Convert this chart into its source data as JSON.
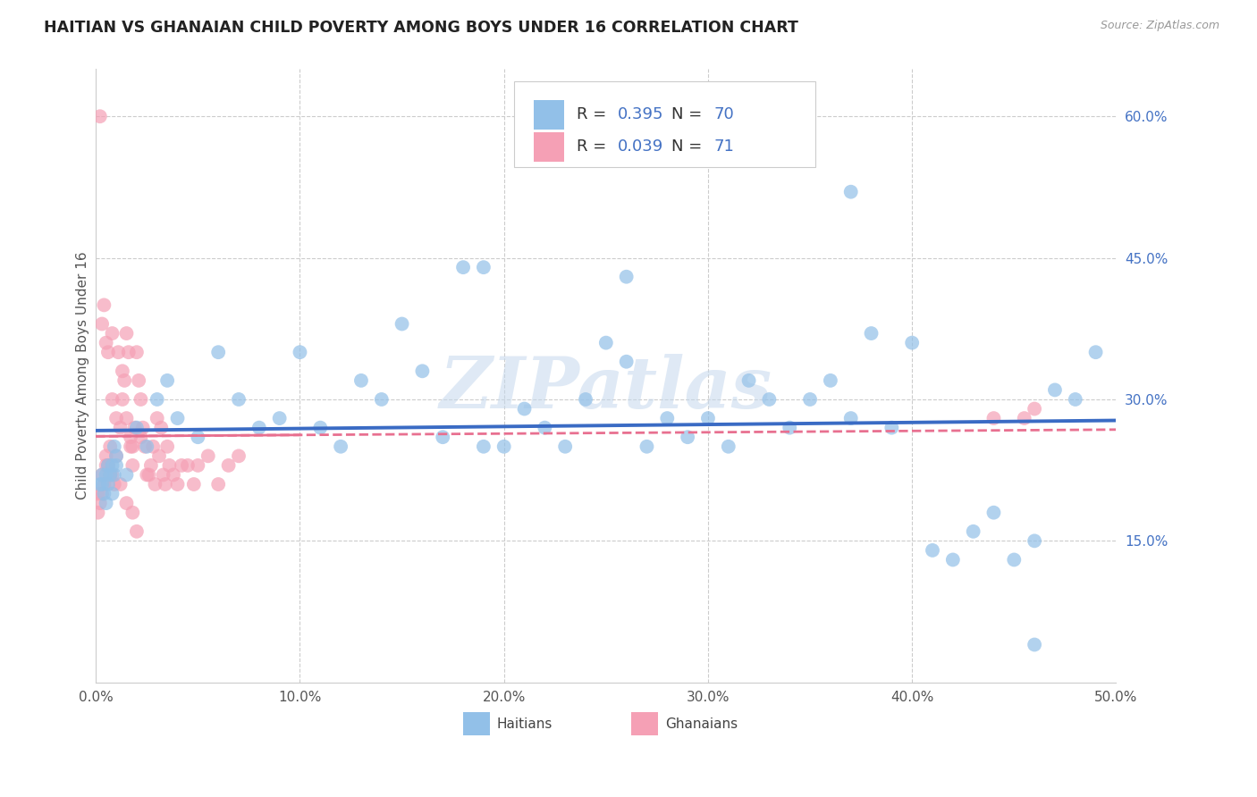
{
  "title": "HAITIAN VS GHANAIAN CHILD POVERTY AMONG BOYS UNDER 16 CORRELATION CHART",
  "source": "Source: ZipAtlas.com",
  "ylabel": "Child Poverty Among Boys Under 16",
  "xlim": [
    0.0,
    0.5
  ],
  "ylim": [
    0.0,
    0.65
  ],
  "xtick_vals": [
    0.0,
    0.1,
    0.2,
    0.3,
    0.4,
    0.5
  ],
  "xtick_labels": [
    "0.0%",
    "10.0%",
    "20.0%",
    "30.0%",
    "40.0%",
    "50.0%"
  ],
  "ytick_right_vals": [
    0.15,
    0.3,
    0.45,
    0.6
  ],
  "ytick_right_labels": [
    "15.0%",
    "30.0%",
    "45.0%",
    "60.0%"
  ],
  "haitians_color": "#92C0E8",
  "ghanaians_color": "#F5A0B5",
  "haitians_line_color": "#3A6BC4",
  "ghanaians_line_color": "#E87090",
  "R_haitians": 0.395,
  "N_haitians": 70,
  "R_ghanaians": 0.039,
  "N_ghanaians": 71,
  "watermark": "ZIPatlas",
  "background_color": "#FFFFFF",
  "grid_color": "#CCCCCC",
  "legend_num_color": "#4472C4",
  "legend_text_color": "#333333",
  "axis_label_color": "#555555",
  "right_tick_color": "#4472C4",
  "haitians_x": [
    0.005,
    0.008,
    0.01,
    0.005,
    0.003,
    0.006,
    0.009,
    0.004,
    0.002,
    0.007,
    0.01,
    0.008,
    0.003,
    0.006,
    0.009,
    0.02,
    0.025,
    0.03,
    0.015,
    0.035,
    0.04,
    0.05,
    0.06,
    0.07,
    0.08,
    0.09,
    0.1,
    0.11,
    0.12,
    0.13,
    0.14,
    0.15,
    0.16,
    0.17,
    0.18,
    0.19,
    0.2,
    0.21,
    0.22,
    0.23,
    0.24,
    0.25,
    0.26,
    0.27,
    0.28,
    0.29,
    0.3,
    0.31,
    0.32,
    0.33,
    0.34,
    0.35,
    0.36,
    0.37,
    0.38,
    0.39,
    0.4,
    0.41,
    0.42,
    0.43,
    0.44,
    0.45,
    0.46,
    0.47,
    0.48,
    0.49,
    0.37,
    0.26,
    0.19,
    0.46
  ],
  "haitians_y": [
    0.22,
    0.2,
    0.23,
    0.19,
    0.21,
    0.23,
    0.22,
    0.2,
    0.21,
    0.22,
    0.24,
    0.23,
    0.22,
    0.21,
    0.25,
    0.27,
    0.25,
    0.3,
    0.22,
    0.32,
    0.28,
    0.26,
    0.35,
    0.3,
    0.27,
    0.28,
    0.35,
    0.27,
    0.25,
    0.32,
    0.3,
    0.38,
    0.33,
    0.26,
    0.44,
    0.25,
    0.25,
    0.29,
    0.27,
    0.25,
    0.3,
    0.36,
    0.34,
    0.25,
    0.28,
    0.26,
    0.28,
    0.25,
    0.32,
    0.3,
    0.27,
    0.3,
    0.32,
    0.28,
    0.37,
    0.27,
    0.36,
    0.14,
    0.13,
    0.16,
    0.18,
    0.13,
    0.15,
    0.31,
    0.3,
    0.35,
    0.52,
    0.43,
    0.44,
    0.04
  ],
  "ghanaians_x": [
    0.001,
    0.002,
    0.003,
    0.001,
    0.005,
    0.006,
    0.004,
    0.003,
    0.007,
    0.005,
    0.008,
    0.009,
    0.006,
    0.007,
    0.008,
    0.01,
    0.012,
    0.011,
    0.013,
    0.014,
    0.015,
    0.013,
    0.016,
    0.017,
    0.018,
    0.015,
    0.019,
    0.017,
    0.018,
    0.02,
    0.022,
    0.021,
    0.023,
    0.024,
    0.025,
    0.022,
    0.026,
    0.027,
    0.028,
    0.03,
    0.029,
    0.031,
    0.032,
    0.033,
    0.034,
    0.035,
    0.036,
    0.038,
    0.04,
    0.042,
    0.045,
    0.048,
    0.05,
    0.055,
    0.06,
    0.065,
    0.07,
    0.002,
    0.004,
    0.003,
    0.005,
    0.006,
    0.008,
    0.01,
    0.012,
    0.015,
    0.018,
    0.02,
    0.44,
    0.455,
    0.46
  ],
  "ghanaians_y": [
    0.2,
    0.19,
    0.22,
    0.18,
    0.24,
    0.23,
    0.21,
    0.2,
    0.22,
    0.23,
    0.22,
    0.21,
    0.23,
    0.25,
    0.3,
    0.28,
    0.27,
    0.35,
    0.33,
    0.32,
    0.37,
    0.3,
    0.35,
    0.25,
    0.23,
    0.28,
    0.27,
    0.26,
    0.25,
    0.35,
    0.3,
    0.32,
    0.27,
    0.25,
    0.22,
    0.26,
    0.22,
    0.23,
    0.25,
    0.28,
    0.21,
    0.24,
    0.27,
    0.22,
    0.21,
    0.25,
    0.23,
    0.22,
    0.21,
    0.23,
    0.23,
    0.21,
    0.23,
    0.24,
    0.21,
    0.23,
    0.24,
    0.6,
    0.4,
    0.38,
    0.36,
    0.35,
    0.37,
    0.24,
    0.21,
    0.19,
    0.18,
    0.16,
    0.28,
    0.28,
    0.29
  ]
}
